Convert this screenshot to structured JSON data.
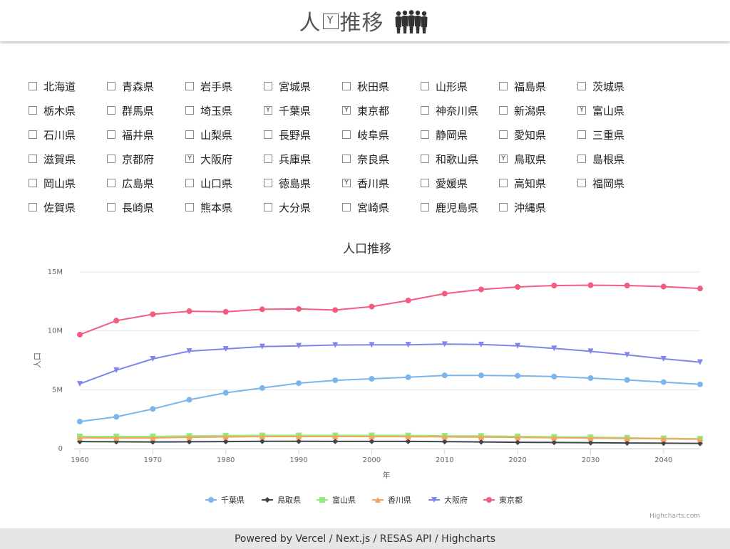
{
  "header": {
    "title_left": "人",
    "title_mark": "Y",
    "title_right": "推移"
  },
  "prefectures": [
    {
      "name": "北海道",
      "checked": false
    },
    {
      "name": "青森県",
      "checked": false
    },
    {
      "name": "岩手県",
      "checked": false
    },
    {
      "name": "宮城県",
      "checked": false
    },
    {
      "name": "秋田県",
      "checked": false
    },
    {
      "name": "山形県",
      "checked": false
    },
    {
      "name": "福島県",
      "checked": false
    },
    {
      "name": "茨城県",
      "checked": false
    },
    {
      "name": "栃木県",
      "checked": false
    },
    {
      "name": "群馬県",
      "checked": false
    },
    {
      "name": "埼玉県",
      "checked": false
    },
    {
      "name": "千葉県",
      "checked": true
    },
    {
      "name": "東京都",
      "checked": true
    },
    {
      "name": "神奈川県",
      "checked": false
    },
    {
      "name": "新潟県",
      "checked": false
    },
    {
      "name": "富山県",
      "checked": true
    },
    {
      "name": "石川県",
      "checked": false
    },
    {
      "name": "福井県",
      "checked": false
    },
    {
      "name": "山梨県",
      "checked": false
    },
    {
      "name": "長野県",
      "checked": false
    },
    {
      "name": "岐阜県",
      "checked": false
    },
    {
      "name": "静岡県",
      "checked": false
    },
    {
      "name": "愛知県",
      "checked": false
    },
    {
      "name": "三重県",
      "checked": false
    },
    {
      "name": "滋賀県",
      "checked": false
    },
    {
      "name": "京都府",
      "checked": false
    },
    {
      "name": "大阪府",
      "checked": true
    },
    {
      "name": "兵庫県",
      "checked": false
    },
    {
      "name": "奈良県",
      "checked": false
    },
    {
      "name": "和歌山県",
      "checked": false
    },
    {
      "name": "鳥取県",
      "checked": true
    },
    {
      "name": "島根県",
      "checked": false
    },
    {
      "name": "岡山県",
      "checked": false
    },
    {
      "name": "広島県",
      "checked": false
    },
    {
      "name": "山口県",
      "checked": false
    },
    {
      "name": "徳島県",
      "checked": false
    },
    {
      "name": "香川県",
      "checked": true
    },
    {
      "name": "愛媛県",
      "checked": false
    },
    {
      "name": "高知県",
      "checked": false
    },
    {
      "name": "福岡県",
      "checked": false
    },
    {
      "name": "佐賀県",
      "checked": false
    },
    {
      "name": "長崎県",
      "checked": false
    },
    {
      "name": "熊本県",
      "checked": false
    },
    {
      "name": "大分県",
      "checked": false
    },
    {
      "name": "宮崎県",
      "checked": false
    },
    {
      "name": "鹿児島県",
      "checked": false
    },
    {
      "name": "沖縄県",
      "checked": false
    }
  ],
  "checkbox_mark": "Y",
  "chart_data": {
    "type": "line",
    "title": "人口推移",
    "xlabel": "年",
    "ylabel": "人口",
    "x": [
      1960,
      1965,
      1970,
      1975,
      1980,
      1985,
      1990,
      1995,
      2000,
      2005,
      2010,
      2015,
      2020,
      2025,
      2030,
      2035,
      2040,
      2045
    ],
    "xticks": [
      1960,
      1970,
      1980,
      1990,
      2000,
      2010,
      2020,
      2030,
      2040
    ],
    "ylim": [
      0,
      15000000
    ],
    "yticks": [
      {
        "value": 0,
        "label": "0"
      },
      {
        "value": 5000000,
        "label": "5M"
      },
      {
        "value": 10000000,
        "label": "10M"
      },
      {
        "value": 15000000,
        "label": "15M"
      }
    ],
    "grid": true,
    "legend_position": "bottom-center",
    "series": [
      {
        "name": "千葉県",
        "color": "#7cb5ec",
        "marker": "circle",
        "values": [
          2300000,
          2700000,
          3370000,
          4150000,
          4740000,
          5150000,
          5560000,
          5800000,
          5930000,
          6060000,
          6220000,
          6220000,
          6190000,
          6120000,
          5990000,
          5830000,
          5650000,
          5460000
        ]
      },
      {
        "name": "鳥取県",
        "color": "#434348",
        "marker": "diamond",
        "values": [
          600000,
          580000,
          570000,
          580000,
          600000,
          620000,
          620000,
          610000,
          610000,
          610000,
          590000,
          570000,
          540000,
          520000,
          500000,
          480000,
          460000,
          440000
        ]
      },
      {
        "name": "富山県",
        "color": "#90ed7d",
        "marker": "square",
        "values": [
          1030000,
          1030000,
          1030000,
          1070000,
          1100000,
          1120000,
          1120000,
          1120000,
          1120000,
          1110000,
          1090000,
          1070000,
          1030000,
          990000,
          960000,
          920000,
          870000,
          830000
        ]
      },
      {
        "name": "香川県",
        "color": "#f7a35c",
        "marker": "triangle",
        "values": [
          920000,
          900000,
          910000,
          960000,
          1000000,
          1020000,
          1020000,
          1030000,
          1020000,
          1010000,
          1000000,
          980000,
          950000,
          920000,
          890000,
          860000,
          830000,
          800000
        ]
      },
      {
        "name": "大阪府",
        "color": "#8085e9",
        "marker": "triangle-down",
        "values": [
          5500000,
          6660000,
          7620000,
          8280000,
          8470000,
          8670000,
          8730000,
          8800000,
          8810000,
          8820000,
          8870000,
          8840000,
          8730000,
          8510000,
          8260000,
          7960000,
          7630000,
          7340000
        ]
      },
      {
        "name": "東京都",
        "color": "#f15c80",
        "marker": "circle",
        "values": [
          9680000,
          10870000,
          11410000,
          11670000,
          11620000,
          11830000,
          11860000,
          11770000,
          12060000,
          12580000,
          13160000,
          13520000,
          13730000,
          13850000,
          13880000,
          13850000,
          13760000,
          13600000
        ]
      }
    ],
    "credits": "Highcharts.com"
  },
  "footer": {
    "text": "Powered by Vercel / Next.js / RESAS API / Highcharts"
  }
}
